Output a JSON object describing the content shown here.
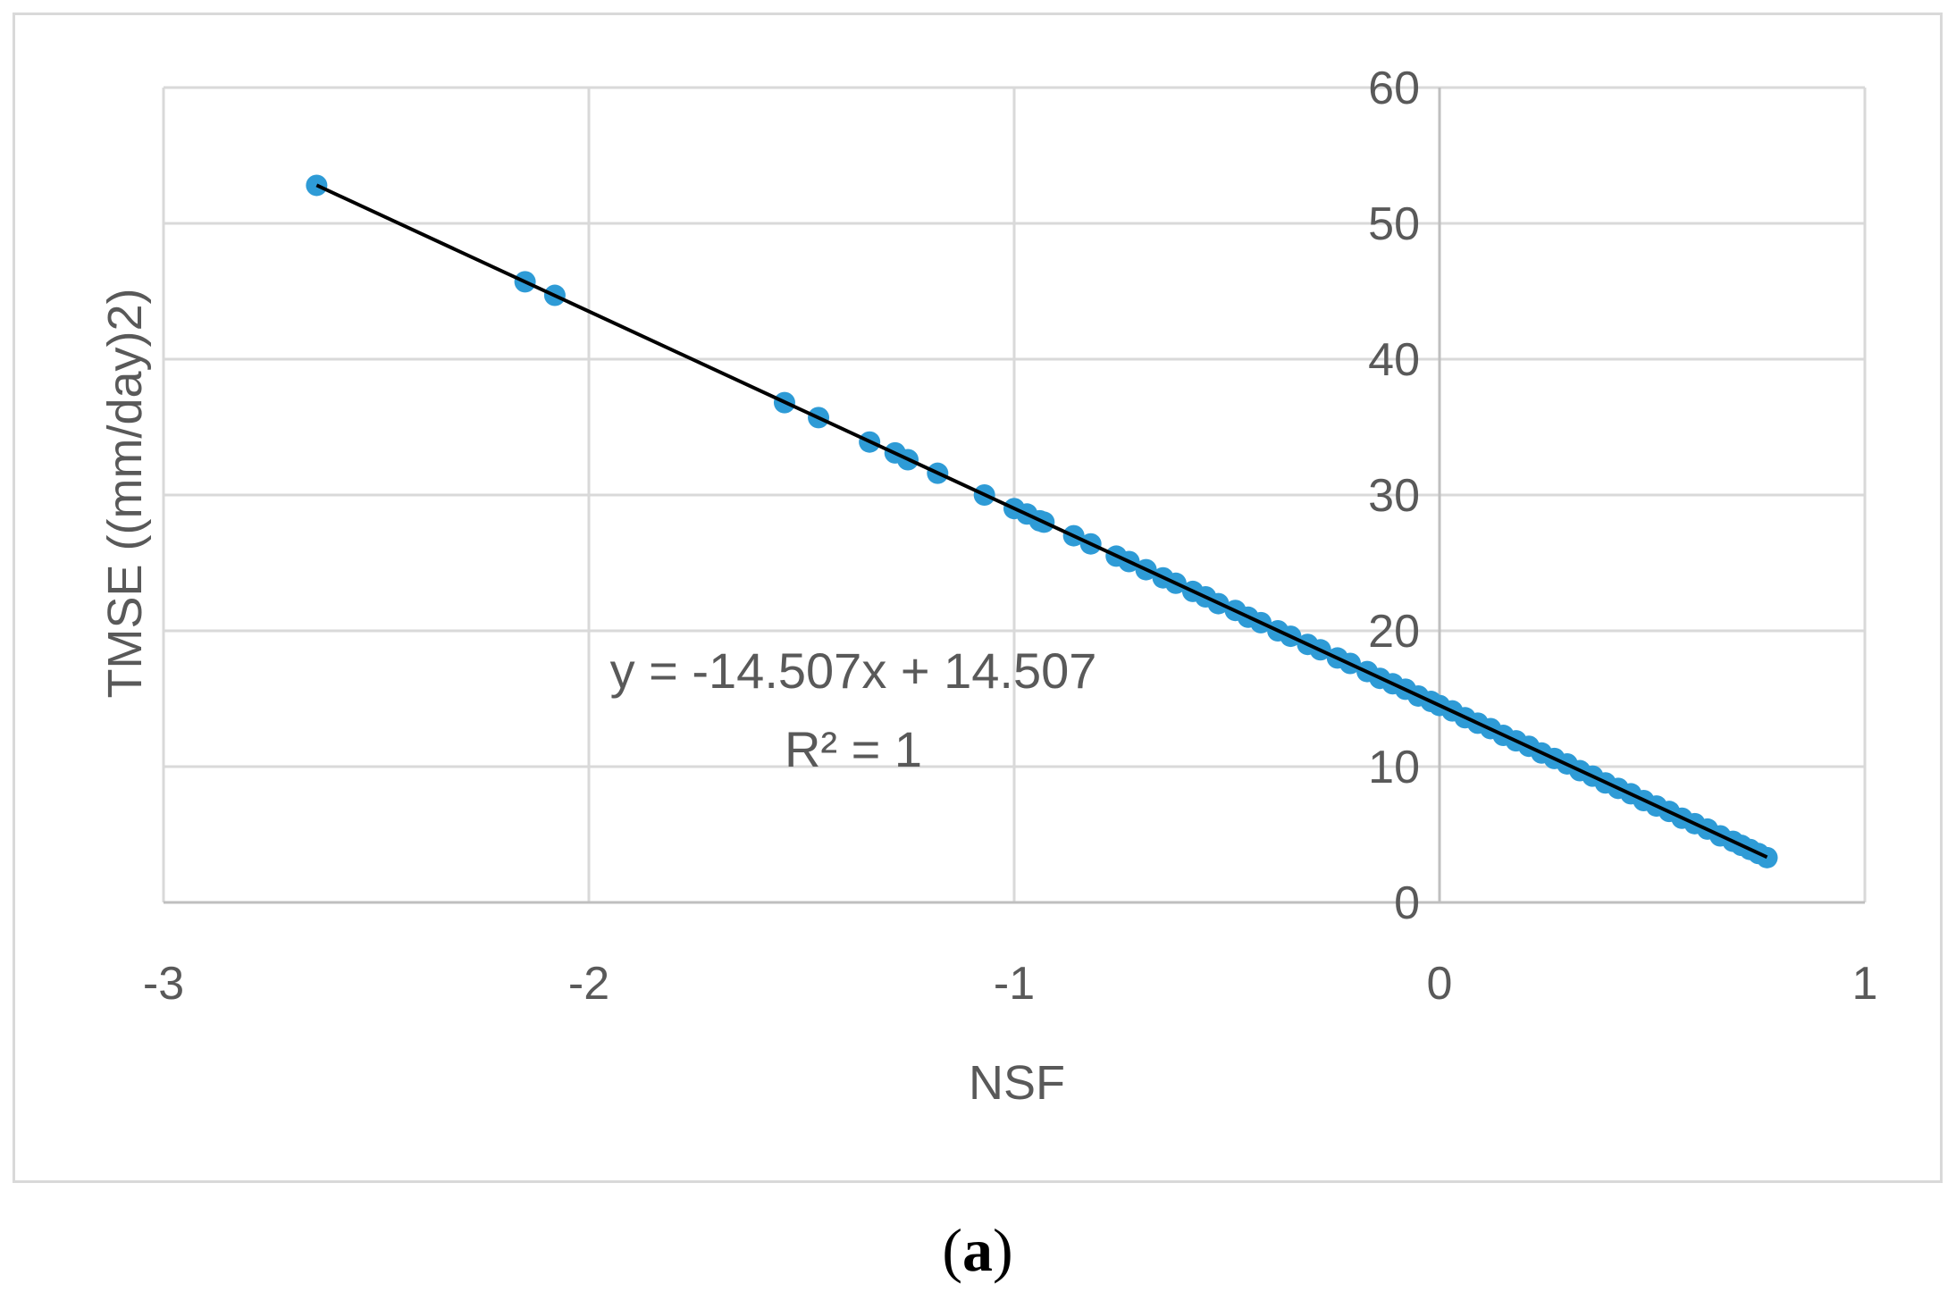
{
  "caption": {
    "open": "(",
    "letter": "a",
    "close": ")"
  },
  "chart_data": {
    "type": "scatter",
    "title": "",
    "xlabel": "NSF",
    "ylabel": "TMSE ((mm/day)2)",
    "xlim": [
      -3,
      1
    ],
    "ylim": [
      0,
      60
    ],
    "xticks": [
      -3,
      -2,
      -1,
      0,
      1
    ],
    "yticks": [
      0,
      10,
      20,
      30,
      40,
      50,
      60
    ],
    "grid": true,
    "legend": "none",
    "marker_color": "#2e9bd6",
    "trendline_color": "#000000",
    "trendline": {
      "slope": -14.507,
      "intercept": 14.507,
      "x_range": [
        -2.64,
        0.77
      ],
      "equation": "y = -14.507x + 14.507",
      "r2_label": "R² = 1"
    },
    "x": [
      -2.64,
      -2.15,
      -2.08,
      -1.54,
      -1.46,
      -1.34,
      -1.28,
      -1.25,
      -1.18,
      -1.07,
      -1.0,
      -0.97,
      -0.94,
      -0.93,
      -0.86,
      -0.82,
      -0.76,
      -0.73,
      -0.69,
      -0.65,
      -0.62,
      -0.58,
      -0.55,
      -0.52,
      -0.48,
      -0.45,
      -0.42,
      -0.38,
      -0.35,
      -0.31,
      -0.28,
      -0.24,
      -0.21,
      -0.17,
      -0.14,
      -0.11,
      -0.08,
      -0.05,
      -0.02,
      0.0,
      0.03,
      0.06,
      0.09,
      0.12,
      0.15,
      0.18,
      0.21,
      0.24,
      0.27,
      0.3,
      0.33,
      0.36,
      0.39,
      0.42,
      0.45,
      0.48,
      0.51,
      0.54,
      0.57,
      0.6,
      0.63,
      0.66,
      0.69,
      0.71,
      0.73,
      0.75,
      0.77
    ],
    "y": [
      52.8,
      45.7,
      44.7,
      36.8,
      35.7,
      33.9,
      33.1,
      32.6,
      31.6,
      30.0,
      29.0,
      28.6,
      28.1,
      28.0,
      27.0,
      26.4,
      25.5,
      25.1,
      24.5,
      23.9,
      23.5,
      22.9,
      22.5,
      22.0,
      21.5,
      21.0,
      20.6,
      20.0,
      19.6,
      19.0,
      18.6,
      18.0,
      17.6,
      17.0,
      16.5,
      16.1,
      15.7,
      15.2,
      14.8,
      14.5,
      14.1,
      13.6,
      13.2,
      12.8,
      12.3,
      11.9,
      11.5,
      11.0,
      10.6,
      10.2,
      9.7,
      9.3,
      8.8,
      8.4,
      8.0,
      7.5,
      7.1,
      6.7,
      6.2,
      5.8,
      5.4,
      4.9,
      4.5,
      4.2,
      3.9,
      3.6,
      3.3
    ]
  }
}
